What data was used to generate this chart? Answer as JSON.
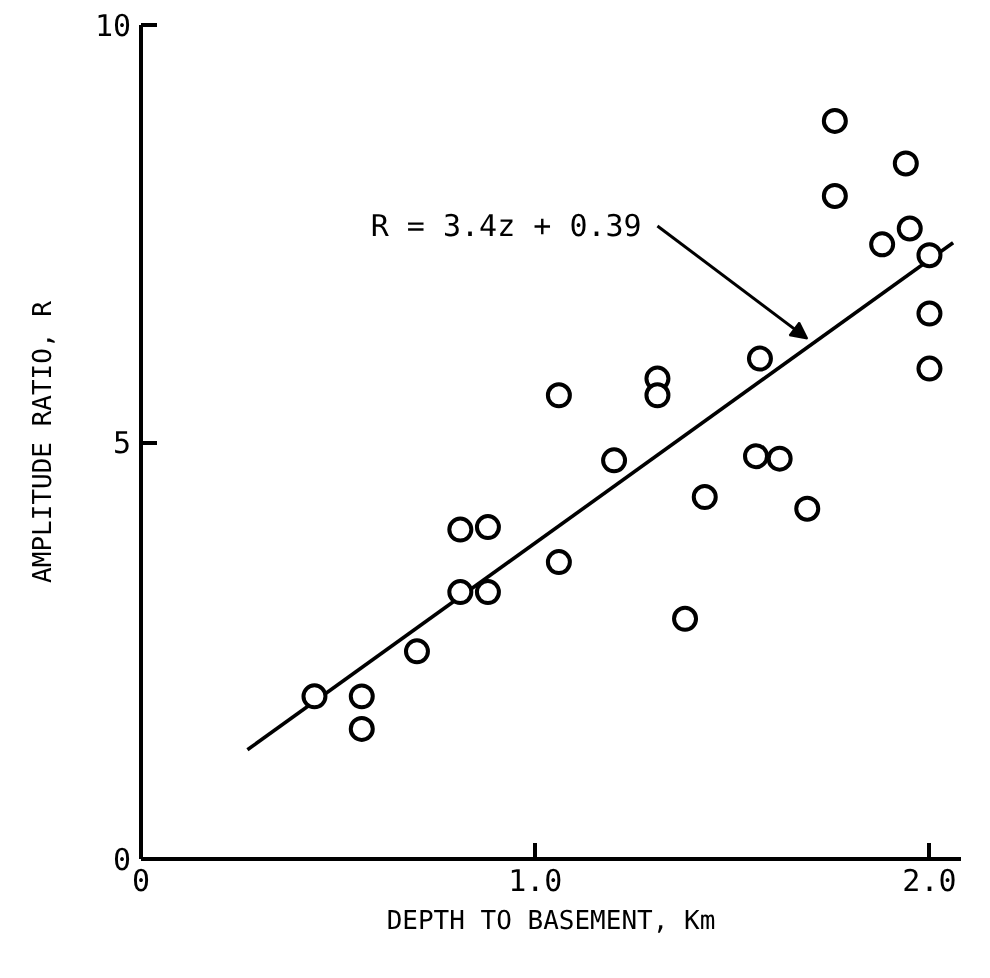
{
  "chart_data": {
    "type": "scatter",
    "xlabel": "DEPTH TO BASEMENT, Km",
    "ylabel": "AMPLITUDE RATIO, R",
    "xlim": [
      0,
      2.08
    ],
    "ylim": [
      0,
      10
    ],
    "xticks": [
      0,
      {
        "value": 1,
        "label": "1.0"
      },
      {
        "value": 2,
        "label": "2.0"
      }
    ],
    "yticks": [
      0,
      5,
      10
    ],
    "grid": false,
    "annotations": [
      {
        "text": "R = 3.4z + 0.39",
        "x": 1.69,
        "y": 6.14
      }
    ],
    "series": [
      {
        "color": "#000000",
        "marker": "circle",
        "x": [
          0.44,
          0.56,
          0.56,
          0.7,
          0.81,
          0.81,
          0.88,
          0.88,
          1.06,
          1.06,
          1.2,
          1.31,
          1.31,
          1.38,
          1.43,
          1.57,
          1.56,
          1.62,
          1.69,
          1.76,
          1.76,
          1.88,
          1.95,
          1.94,
          2.0,
          2.0,
          2.0
        ],
        "values": [
          1.95,
          1.95,
          1.56,
          2.49,
          3.2,
          3.95,
          3.2,
          3.98,
          3.56,
          5.56,
          4.78,
          5.76,
          5.56,
          2.88,
          4.34,
          6.0,
          4.83,
          4.8,
          4.2,
          8.85,
          7.95,
          7.37,
          7.56,
          8.34,
          7.24,
          6.54,
          5.88
        ]
      },
      {
        "type": "line",
        "color": "#000000",
        "line_style": "solid",
        "x": [
          0.27,
          2.06
        ],
        "values": [
          1.31,
          7.39
        ]
      }
    ]
  }
}
